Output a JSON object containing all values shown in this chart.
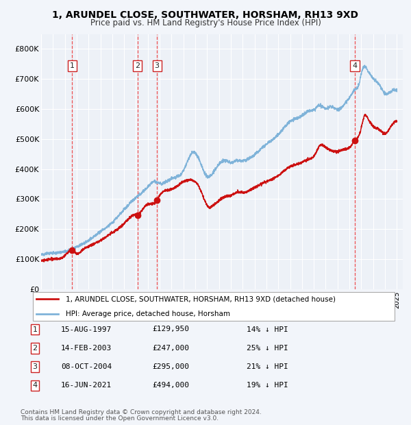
{
  "title1": "1, ARUNDEL CLOSE, SOUTHWATER, HORSHAM, RH13 9XD",
  "title2": "Price paid vs. HM Land Registry's House Price Index (HPI)",
  "ylim": [
    0,
    850000
  ],
  "yticks": [
    0,
    100000,
    200000,
    300000,
    400000,
    500000,
    600000,
    700000,
    800000
  ],
  "ytick_labels": [
    "£0",
    "£100K",
    "£200K",
    "£300K",
    "£400K",
    "£500K",
    "£600K",
    "£700K",
    "£800K"
  ],
  "xlim_start": 1995.0,
  "xlim_end": 2025.5,
  "plot_bg": "#edf1f7",
  "grid_color": "#ffffff",
  "hpi_color": "#7fb3d9",
  "price_color": "#cc1111",
  "dot_color": "#cc1111",
  "dashed_color": "#ee3333",
  "purchases": [
    {
      "num": 1,
      "date_x": 1997.62,
      "price": 129950,
      "label": "15-AUG-1997",
      "pct": "14%"
    },
    {
      "num": 2,
      "date_x": 2003.12,
      "price": 247000,
      "label": "14-FEB-2003",
      "pct": "25%"
    },
    {
      "num": 3,
      "date_x": 2004.77,
      "price": 295000,
      "label": "08-OCT-2004",
      "pct": "21%"
    },
    {
      "num": 4,
      "date_x": 2021.46,
      "price": 494000,
      "label": "16-JUN-2021",
      "pct": "19%"
    }
  ],
  "footer1": "Contains HM Land Registry data © Crown copyright and database right 2024.",
  "footer2": "This data is licensed under the Open Government Licence v3.0.",
  "legend_label1": "1, ARUNDEL CLOSE, SOUTHWATER, HORSHAM, RH13 9XD (detached house)",
  "legend_label2": "HPI: Average price, detached house, Horsham",
  "hpi_keypoints": [
    [
      1995.0,
      115000
    ],
    [
      1996.0,
      120000
    ],
    [
      1997.0,
      125000
    ],
    [
      1998.0,
      140000
    ],
    [
      1999.0,
      162000
    ],
    [
      2000.0,
      192000
    ],
    [
      2001.0,
      222000
    ],
    [
      2002.0,
      265000
    ],
    [
      2003.0,
      305000
    ],
    [
      2004.0,
      340000
    ],
    [
      2004.5,
      358000
    ],
    [
      2005.0,
      352000
    ],
    [
      2006.0,
      368000
    ],
    [
      2007.0,
      395000
    ],
    [
      2007.8,
      455000
    ],
    [
      2008.5,
      415000
    ],
    [
      2009.0,
      375000
    ],
    [
      2009.5,
      388000
    ],
    [
      2010.0,
      415000
    ],
    [
      2010.5,
      428000
    ],
    [
      2011.0,
      422000
    ],
    [
      2011.5,
      428000
    ],
    [
      2012.0,
      428000
    ],
    [
      2013.0,
      448000
    ],
    [
      2014.0,
      482000
    ],
    [
      2015.0,
      515000
    ],
    [
      2016.0,
      558000
    ],
    [
      2017.0,
      578000
    ],
    [
      2017.5,
      592000
    ],
    [
      2018.0,
      598000
    ],
    [
      2018.5,
      612000
    ],
    [
      2019.0,
      602000
    ],
    [
      2019.5,
      608000
    ],
    [
      2020.0,
      598000
    ],
    [
      2020.5,
      612000
    ],
    [
      2021.0,
      638000
    ],
    [
      2021.5,
      665000
    ],
    [
      2021.8,
      682000
    ],
    [
      2022.0,
      718000
    ],
    [
      2022.3,
      742000
    ],
    [
      2022.5,
      732000
    ],
    [
      2022.8,
      712000
    ],
    [
      2023.0,
      702000
    ],
    [
      2023.5,
      682000
    ],
    [
      2024.0,
      652000
    ],
    [
      2024.5,
      658000
    ],
    [
      2025.0,
      662000
    ]
  ],
  "price_keypoints": [
    [
      1995.0,
      95000
    ],
    [
      1995.5,
      97000
    ],
    [
      1996.0,
      100000
    ],
    [
      1997.0,
      110000
    ],
    [
      1997.62,
      129950
    ],
    [
      1998.0,
      118000
    ],
    [
      1998.5,
      130000
    ],
    [
      1999.0,
      142000
    ],
    [
      2000.0,
      162000
    ],
    [
      2001.0,
      188000
    ],
    [
      2002.0,
      218000
    ],
    [
      2003.0,
      248000
    ],
    [
      2003.12,
      247000
    ],
    [
      2003.5,
      262000
    ],
    [
      2004.0,
      282000
    ],
    [
      2004.77,
      295000
    ],
    [
      2005.0,
      312000
    ],
    [
      2005.5,
      328000
    ],
    [
      2006.0,
      332000
    ],
    [
      2007.0,
      358000
    ],
    [
      2007.8,
      362000
    ],
    [
      2008.3,
      342000
    ],
    [
      2008.8,
      295000
    ],
    [
      2009.2,
      272000
    ],
    [
      2009.5,
      278000
    ],
    [
      2010.0,
      295000
    ],
    [
      2010.5,
      308000
    ],
    [
      2011.0,
      312000
    ],
    [
      2011.5,
      322000
    ],
    [
      2012.0,
      322000
    ],
    [
      2013.0,
      338000
    ],
    [
      2014.0,
      358000
    ],
    [
      2015.0,
      378000
    ],
    [
      2016.0,
      408000
    ],
    [
      2017.0,
      422000
    ],
    [
      2017.5,
      432000
    ],
    [
      2018.0,
      442000
    ],
    [
      2018.5,
      478000
    ],
    [
      2019.0,
      472000
    ],
    [
      2019.5,
      462000
    ],
    [
      2020.0,
      458000
    ],
    [
      2020.5,
      465000
    ],
    [
      2021.0,
      472000
    ],
    [
      2021.46,
      494000
    ],
    [
      2021.8,
      512000
    ],
    [
      2022.0,
      538000
    ],
    [
      2022.3,
      578000
    ],
    [
      2022.5,
      572000
    ],
    [
      2022.8,
      552000
    ],
    [
      2023.0,
      542000
    ],
    [
      2023.5,
      532000
    ],
    [
      2024.0,
      518000
    ],
    [
      2024.5,
      542000
    ],
    [
      2025.0,
      558000
    ]
  ]
}
